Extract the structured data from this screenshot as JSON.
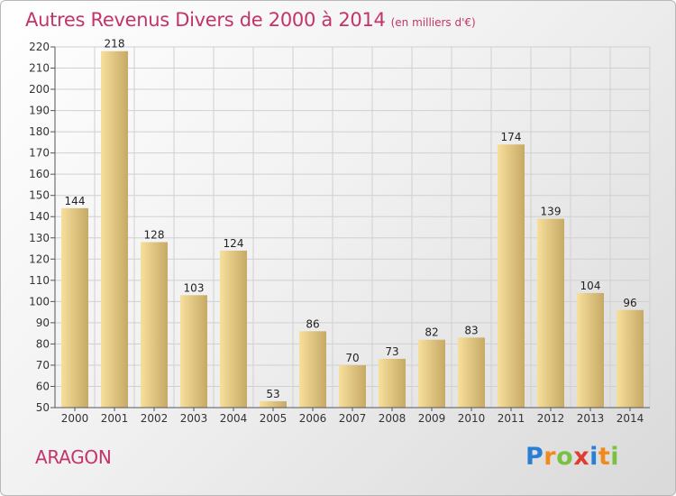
{
  "header": {
    "title": "Autres Revenus Divers de 2000 à 2014",
    "subtitle": "(en milliers d'€)"
  },
  "footer": {
    "commune": "ARAGON",
    "logo_text": "Proxiti",
    "logo_letters": [
      {
        "char": "P",
        "color": "#2a7fd4"
      },
      {
        "char": "r",
        "color": "#f08a1c"
      },
      {
        "char": "o",
        "color": "#7ac143"
      },
      {
        "char": "x",
        "color": "#e03c31"
      },
      {
        "char": "i",
        "color": "#2a7fd4"
      },
      {
        "char": "t",
        "color": "#f08a1c"
      },
      {
        "char": "i",
        "color": "#7ac143"
      }
    ]
  },
  "chart_data": {
    "type": "bar",
    "categories": [
      "2000",
      "2001",
      "2002",
      "2003",
      "2004",
      "2005",
      "2006",
      "2007",
      "2008",
      "2009",
      "2010",
      "2011",
      "2012",
      "2013",
      "2014"
    ],
    "values": [
      144,
      218,
      128,
      103,
      124,
      53,
      86,
      70,
      73,
      82,
      83,
      174,
      139,
      104,
      96
    ],
    "ylim": [
      50,
      220
    ],
    "yticks": [
      50,
      60,
      70,
      80,
      90,
      100,
      110,
      120,
      130,
      140,
      150,
      160,
      170,
      180,
      190,
      200,
      210,
      220
    ],
    "grid": true,
    "legend": "none",
    "colors": {
      "bar_light": "#f7df9c",
      "bar_dark": "#c6a965",
      "grid": "#d0d0d0",
      "text_accent": "#c2346a"
    }
  }
}
